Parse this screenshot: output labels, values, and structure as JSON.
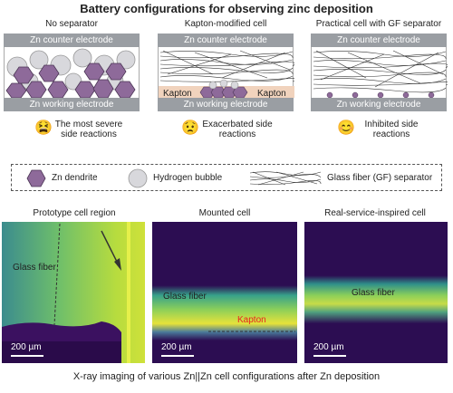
{
  "title": "Battery configurations for observing zinc deposition",
  "panels": [
    {
      "title": "No separator",
      "counter": "Zn counter electrode",
      "working": "Zn working electrode",
      "reaction": "The most severe side reactions"
    },
    {
      "title": "Kapton-modified cell",
      "counter": "Zn counter electrode",
      "working": "Zn working electrode",
      "kapton_left": "Kapton",
      "kapton_right": "Kapton",
      "reaction": "Exacerbated side reactions"
    },
    {
      "title": "Practical cell with GF separator",
      "counter": "Zn counter electrode",
      "working": "Zn working electrode",
      "reaction": "Inhibited side reactions"
    }
  ],
  "legend": {
    "dendrite": "Zn dendrite",
    "bubble": "Hydrogen bubble",
    "gf": "Glass fiber (GF) separator"
  },
  "xray": [
    {
      "title": "Prototype cell region",
      "label": "Glass fiber",
      "scale": "200 µm"
    },
    {
      "title": "Mounted cell",
      "label": "Glass fiber",
      "label2": "Kapton",
      "scale": "200 µm"
    },
    {
      "title": "Real-service-inspired cell",
      "label": "Glass fiber",
      "scale": "200 µm"
    }
  ],
  "caption": "X-ray imaging of various Zn||Zn cell configurations after Zn deposition",
  "colors": {
    "electrode": "#9a9ea3",
    "dendrite": "#8e6a9a",
    "bubble": "#d8d8dc",
    "kapton": "#f1d3bd",
    "kapton_text": "#e8261f"
  }
}
